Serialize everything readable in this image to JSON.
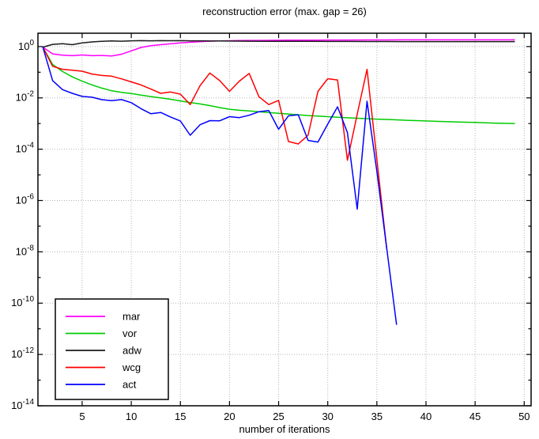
{
  "chart_data": {
    "type": "line",
    "title": "reconstruction error (max. gap = 26)",
    "xlabel": "number of iterations",
    "ylabel": "",
    "y_axis_type": "log10",
    "grid": true,
    "xlim": [
      0.5,
      50.7
    ],
    "ylim_exp": [
      -14,
      0.52
    ],
    "x_ticks": [
      5,
      10,
      15,
      20,
      25,
      30,
      35,
      40,
      45,
      50
    ],
    "y_tick_exponents": [
      0,
      -2,
      -4,
      -6,
      -8,
      -10,
      -12,
      -14
    ],
    "legend_position": "lower-left",
    "frame_color": "#000000",
    "grid_color": "#b5b5b5",
    "series": [
      {
        "name": "mar",
        "color": "#ff00ff",
        "points": [
          [
            1,
            0.95
          ],
          [
            2,
            0.52
          ],
          [
            3,
            0.46
          ],
          [
            4,
            0.44
          ],
          [
            5,
            0.47
          ],
          [
            6,
            0.44
          ],
          [
            7,
            0.45
          ],
          [
            8,
            0.43
          ],
          [
            9,
            0.5
          ],
          [
            10,
            0.68
          ],
          [
            11,
            0.92
          ],
          [
            12,
            1.08
          ],
          [
            13,
            1.18
          ],
          [
            14,
            1.28
          ],
          [
            15,
            1.38
          ],
          [
            16,
            1.47
          ],
          [
            17,
            1.55
          ],
          [
            18,
            1.62
          ],
          [
            19,
            1.66
          ],
          [
            20,
            1.69
          ],
          [
            21,
            1.71
          ],
          [
            22,
            1.73
          ],
          [
            23,
            1.74
          ],
          [
            24,
            1.75
          ],
          [
            25,
            1.76
          ],
          [
            26,
            1.77
          ],
          [
            27,
            1.78
          ],
          [
            28,
            1.79
          ],
          [
            29,
            1.79
          ],
          [
            30,
            1.8
          ],
          [
            32,
            1.8
          ],
          [
            34,
            1.81
          ],
          [
            36,
            1.81
          ],
          [
            38,
            1.82
          ],
          [
            40,
            1.82
          ],
          [
            42,
            1.82
          ],
          [
            44,
            1.82
          ],
          [
            46,
            1.82
          ],
          [
            48,
            1.82
          ],
          [
            49,
            1.82
          ]
        ]
      },
      {
        "name": "vor",
        "color": "#00cc00",
        "points": [
          [
            1,
            0.95
          ],
          [
            2,
            0.2
          ],
          [
            3,
            0.107
          ],
          [
            4,
            0.066
          ],
          [
            5,
            0.045
          ],
          [
            6,
            0.032
          ],
          [
            7,
            0.024
          ],
          [
            8,
            0.019
          ],
          [
            9,
            0.0165
          ],
          [
            10,
            0.0148
          ],
          [
            11,
            0.0128
          ],
          [
            12,
            0.0112
          ],
          [
            13,
            0.01
          ],
          [
            14,
            0.0088
          ],
          [
            15,
            0.0076
          ],
          [
            16,
            0.0066
          ],
          [
            17,
            0.0058
          ],
          [
            18,
            0.005
          ],
          [
            19,
            0.0042
          ],
          [
            20,
            0.0036
          ],
          [
            21,
            0.0033
          ],
          [
            22,
            0.0031
          ],
          [
            23,
            0.0029
          ],
          [
            24,
            0.0027
          ],
          [
            25,
            0.0025
          ],
          [
            26,
            0.00235
          ],
          [
            27,
            0.0022
          ],
          [
            28,
            0.00205
          ],
          [
            29,
            0.00195
          ],
          [
            30,
            0.00185
          ],
          [
            31,
            0.00176
          ],
          [
            32,
            0.00168
          ],
          [
            33,
            0.00161
          ],
          [
            34,
            0.00155
          ],
          [
            35,
            0.00149
          ],
          [
            36,
            0.00144
          ],
          [
            37,
            0.00139
          ],
          [
            38,
            0.00134
          ],
          [
            39,
            0.0013
          ],
          [
            40,
            0.00126
          ],
          [
            41,
            0.00122
          ],
          [
            42,
            0.00119
          ],
          [
            43,
            0.00116
          ],
          [
            44,
            0.00113
          ],
          [
            45,
            0.0011
          ],
          [
            46,
            0.00107
          ],
          [
            47,
            0.00104
          ],
          [
            48,
            0.00102
          ],
          [
            49,
            0.001
          ]
        ]
      },
      {
        "name": "adw",
        "color": "#1a1a1a",
        "points": [
          [
            1,
            0.95
          ],
          [
            2,
            1.22
          ],
          [
            3,
            1.3
          ],
          [
            4,
            1.18
          ],
          [
            5,
            1.38
          ],
          [
            6,
            1.52
          ],
          [
            7,
            1.6
          ],
          [
            8,
            1.65
          ],
          [
            9,
            1.62
          ],
          [
            10,
            1.67
          ],
          [
            11,
            1.7
          ],
          [
            12,
            1.68
          ],
          [
            13,
            1.7
          ],
          [
            14,
            1.69
          ],
          [
            15,
            1.7
          ],
          [
            16,
            1.68
          ],
          [
            17,
            1.67
          ],
          [
            18,
            1.66
          ],
          [
            19,
            1.65
          ],
          [
            20,
            1.64
          ],
          [
            22,
            1.62
          ],
          [
            24,
            1.61
          ],
          [
            26,
            1.6
          ],
          [
            28,
            1.59
          ],
          [
            30,
            1.58
          ],
          [
            32,
            1.58
          ],
          [
            34,
            1.57
          ],
          [
            36,
            1.57
          ],
          [
            38,
            1.56
          ],
          [
            40,
            1.56
          ],
          [
            42,
            1.56
          ],
          [
            44,
            1.56
          ],
          [
            46,
            1.56
          ],
          [
            48,
            1.56
          ],
          [
            49,
            1.56
          ]
        ]
      },
      {
        "name": "wcg",
        "color": "#ff0000",
        "points": [
          [
            1,
            0.95
          ],
          [
            2,
            0.17
          ],
          [
            3,
            0.13
          ],
          [
            4,
            0.12
          ],
          [
            5,
            0.11
          ],
          [
            6,
            0.085
          ],
          [
            7,
            0.075
          ],
          [
            8,
            0.07
          ],
          [
            9,
            0.055
          ],
          [
            10,
            0.042
          ],
          [
            11,
            0.032
          ],
          [
            12,
            0.022
          ],
          [
            13,
            0.015
          ],
          [
            14,
            0.017
          ],
          [
            15,
            0.014
          ],
          [
            16,
            0.0055
          ],
          [
            17,
            0.03
          ],
          [
            18,
            0.093
          ],
          [
            19,
            0.047
          ],
          [
            20,
            0.018
          ],
          [
            21,
            0.045
          ],
          [
            22,
            0.09
          ],
          [
            23,
            0.011
          ],
          [
            24,
            0.0055
          ],
          [
            25,
            0.008
          ],
          [
            26,
            0.0002
          ],
          [
            27,
            0.00016
          ],
          [
            28,
            0.00035
          ],
          [
            29,
            0.018
          ],
          [
            30,
            0.056
          ],
          [
            31,
            0.05
          ],
          [
            32,
            3.7e-05
          ],
          [
            33,
            0.0023
          ],
          [
            34,
            0.13
          ],
          [
            35,
            4.2e-05
          ],
          [
            36,
            1.3e-08
          ]
        ]
      },
      {
        "name": "act",
        "color": "#0000ff",
        "points": [
          [
            1,
            0.95
          ],
          [
            2,
            0.047
          ],
          [
            3,
            0.021
          ],
          [
            4,
            0.015
          ],
          [
            5,
            0.0114
          ],
          [
            6,
            0.0106
          ],
          [
            7,
            0.0085
          ],
          [
            8,
            0.0078
          ],
          [
            9,
            0.0086
          ],
          [
            10,
            0.0065
          ],
          [
            11,
            0.0038
          ],
          [
            12,
            0.0024
          ],
          [
            13,
            0.0027
          ],
          [
            14,
            0.0018
          ],
          [
            15,
            0.00126
          ],
          [
            16,
            0.00035
          ],
          [
            17,
            0.0009
          ],
          [
            18,
            0.0013
          ],
          [
            19,
            0.00128
          ],
          [
            20,
            0.00185
          ],
          [
            21,
            0.0017
          ],
          [
            22,
            0.0021
          ],
          [
            23,
            0.0029
          ],
          [
            24,
            0.0032
          ],
          [
            25,
            0.0006
          ],
          [
            26,
            0.002
          ],
          [
            27,
            0.0022
          ],
          [
            28,
            0.00022
          ],
          [
            29,
            0.00019
          ],
          [
            30,
            0.00095
          ],
          [
            31,
            0.0045
          ],
          [
            32,
            0.00044
          ],
          [
            33,
            4.6e-07
          ],
          [
            34,
            0.0074
          ],
          [
            35,
            1.4e-05
          ],
          [
            36,
            1.4e-08
          ],
          [
            37,
            1.5e-11
          ]
        ]
      }
    ]
  }
}
